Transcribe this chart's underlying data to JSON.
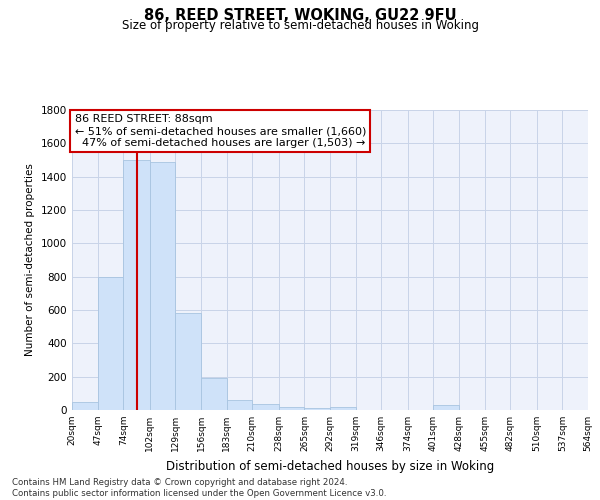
{
  "title_line1": "86, REED STREET, WOKING, GU22 9FU",
  "title_line2": "Size of property relative to semi-detached houses in Woking",
  "xlabel": "Distribution of semi-detached houses by size in Woking",
  "ylabel": "Number of semi-detached properties",
  "footnote": "Contains HM Land Registry data © Crown copyright and database right 2024.\nContains public sector information licensed under the Open Government Licence v3.0.",
  "bar_color": "#cfe2f9",
  "bar_edge_color": "#a8c4e0",
  "annotation_box_color": "#ffffff",
  "annotation_box_edge": "#cc0000",
  "vline_color": "#cc0000",
  "grid_color": "#c8d4e8",
  "bins": [
    20,
    47,
    74,
    102,
    129,
    156,
    183,
    210,
    238,
    265,
    292,
    319,
    346,
    374,
    401,
    428,
    455,
    482,
    510,
    537,
    564
  ],
  "bin_labels": [
    "20sqm",
    "47sqm",
    "74sqm",
    "102sqm",
    "129sqm",
    "156sqm",
    "183sqm",
    "210sqm",
    "238sqm",
    "265sqm",
    "292sqm",
    "319sqm",
    "346sqm",
    "374sqm",
    "401sqm",
    "428sqm",
    "455sqm",
    "482sqm",
    "510sqm",
    "537sqm",
    "564sqm"
  ],
  "values": [
    50,
    800,
    1500,
    1490,
    580,
    190,
    60,
    38,
    20,
    10,
    20,
    0,
    0,
    0,
    30,
    0,
    0,
    0,
    0,
    0
  ],
  "subject_size": 88,
  "subject_label": "86 REED STREET: 88sqm",
  "pct_smaller": 51,
  "n_smaller": 1660,
  "pct_larger": 47,
  "n_larger": 1503,
  "ylim": [
    0,
    1800
  ],
  "yticks": [
    0,
    200,
    400,
    600,
    800,
    1000,
    1200,
    1400,
    1600,
    1800
  ],
  "background_color": "#eef2fb"
}
